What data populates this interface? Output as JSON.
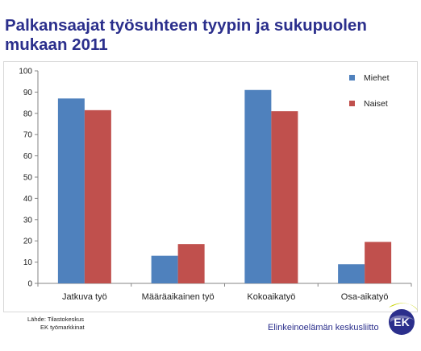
{
  "title": "Palkansaajat työsuhteen tyypin ja sukupuolen mukaan 2011",
  "source": {
    "line1": "Lähde: Tilastokeskus",
    "line2": "EK työmarkkinat"
  },
  "brand": {
    "text": "Elinkeinoelämän keskusliitto",
    "logo_text": "EK",
    "logo_icon": "ek-logo-icon"
  },
  "colors": {
    "title": "#2b2f8c",
    "miehet": "#4f81bd",
    "naiset": "#c0504d",
    "brand": "#2b2f8c"
  },
  "chart_data": {
    "type": "bar",
    "categories": [
      "Jatkuva työ",
      "Määräaikainen työ",
      "Kokoaikatyö",
      "Osa-aikatyö"
    ],
    "series": [
      {
        "name": "Miehet",
        "values": [
          87,
          13,
          91,
          9
        ],
        "color": "#4f81bd"
      },
      {
        "name": "Naiset",
        "values": [
          81.5,
          18.5,
          81,
          19.5
        ],
        "color": "#c0504d"
      }
    ],
    "ylim": [
      0,
      100
    ],
    "yticks": [
      0,
      10,
      20,
      30,
      40,
      50,
      60,
      70,
      80,
      90,
      100
    ],
    "grid": false,
    "legend": "top-right"
  }
}
